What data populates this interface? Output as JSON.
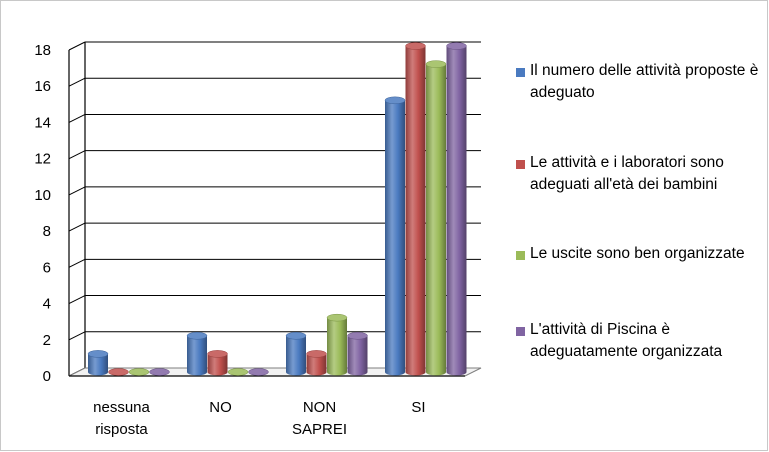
{
  "chart_data": {
    "type": "bar",
    "style": "3d-cylinder",
    "categories": [
      [
        "nessuna",
        "risposta"
      ],
      [
        "NO"
      ],
      [
        "NON",
        "SAPREI"
      ],
      [
        "SI"
      ]
    ],
    "series": [
      {
        "name": "Il numero delle attività proposte è adeguato",
        "color": "#4a7ac0",
        "values": [
          1,
          2,
          2,
          15
        ]
      },
      {
        "name": "Le attività e i laboratori sono adeguati all'età dei bambini",
        "color": "#c0504d",
        "values": [
          0,
          1,
          1,
          18
        ]
      },
      {
        "name": "Le uscite sono ben organizzate",
        "color": "#9bbb59",
        "values": [
          0,
          0,
          3,
          17
        ]
      },
      {
        "name": "L'attività di Piscina è adeguatamente organizzata",
        "color": "#8064a2",
        "values": [
          0,
          0,
          2,
          18
        ]
      }
    ],
    "yticks": [
      "0",
      "2",
      "4",
      "6",
      "8",
      "10",
      "12",
      "14",
      "16",
      "18"
    ],
    "ylim": [
      0,
      18
    ],
    "grid": true,
    "legend_position": "right"
  }
}
